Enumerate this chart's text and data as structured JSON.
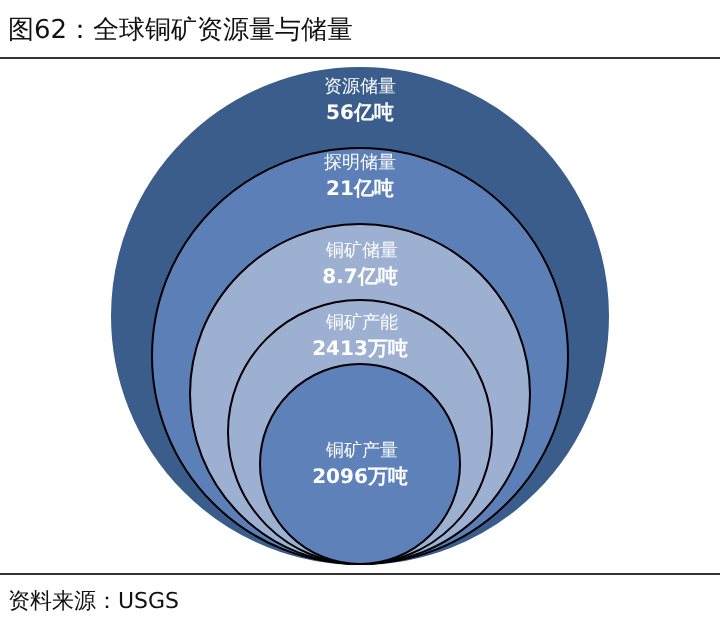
{
  "chart_data": {
    "type": "other",
    "title": "图62：全球铜矿资源量与储量",
    "categories": [
      "资源储量",
      "探明储量",
      "铜矿储量",
      "铜矿产能",
      "铜矿产量"
    ],
    "values": [
      56,
      21,
      8.7,
      2413,
      2096
    ],
    "value_labels": [
      "56亿吨",
      "21亿吨",
      "8.7亿吨",
      "2413万吨",
      "2096万吨"
    ],
    "colors": [
      "#3a5d8c",
      "#5b7fb6",
      "#9db0d2",
      "#9db0d2",
      "#5d81b8"
    ],
    "annotations": [
      "资料来源：USGS"
    ]
  }
}
